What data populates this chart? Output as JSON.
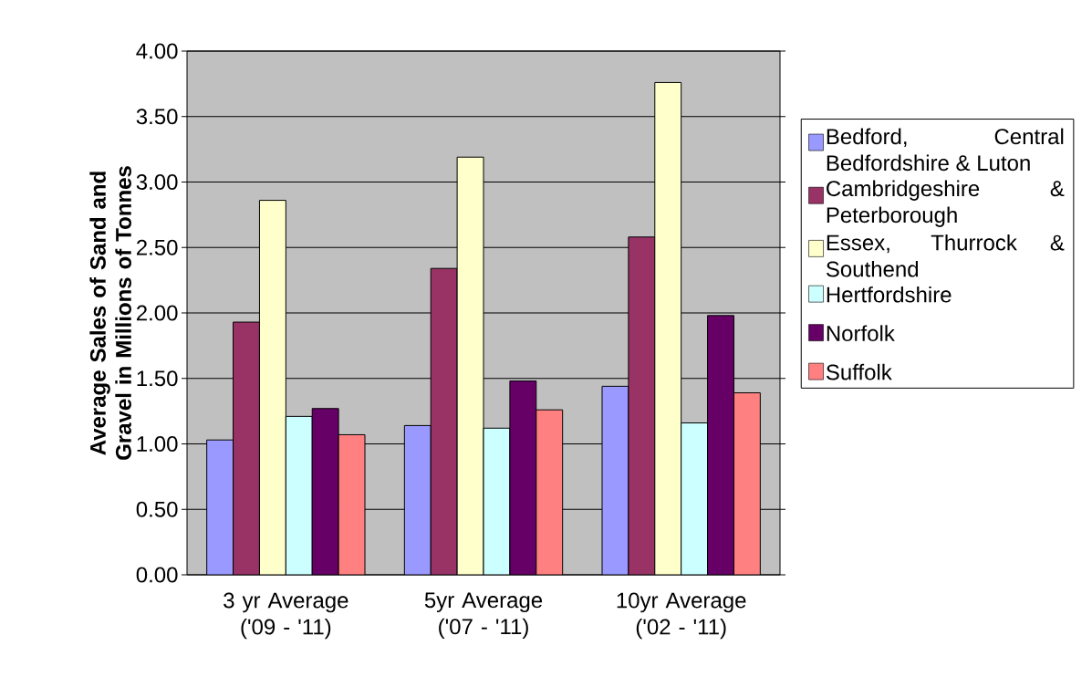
{
  "chart_data": {
    "type": "bar",
    "ylabel": "Average Sales of Sand and Gravel in Millions of Tonnes",
    "categories": [
      "3 yr Average ('09 - '11)",
      "5yr Average ('07 - '11)",
      "10yr Average ('02 - '11)"
    ],
    "series": [
      {
        "name": "Bedford, Central Bedfordshire & Luton",
        "color": "#9999ff",
        "values": [
          1.03,
          1.14,
          1.44
        ]
      },
      {
        "name": "Cambridgeshire & Peterborough",
        "color": "#993366",
        "values": [
          1.93,
          2.34,
          2.58
        ]
      },
      {
        "name": "Essex, Thurrock & Southend",
        "color": "#ffffcc",
        "values": [
          2.86,
          3.19,
          3.76
        ]
      },
      {
        "name": "Hertfordshire",
        "color": "#ccffff",
        "values": [
          1.21,
          1.12,
          1.16
        ]
      },
      {
        "name": "Norfolk",
        "color": "#660066",
        "values": [
          1.27,
          1.48,
          1.98
        ]
      },
      {
        "name": "Suffolk",
        "color": "#ff8080",
        "values": [
          1.07,
          1.26,
          1.39
        ]
      }
    ],
    "ylim": [
      0,
      4
    ],
    "yticks": [
      {
        "value": 0,
        "label": "0.00"
      },
      {
        "value": 0.5,
        "label": "0.50"
      },
      {
        "value": 1,
        "label": "1.00"
      },
      {
        "value": 1.5,
        "label": "1.50"
      },
      {
        "value": 2,
        "label": "2.00"
      },
      {
        "value": 2.5,
        "label": "2.50"
      },
      {
        "value": 3,
        "label": "3.00"
      },
      {
        "value": 3.5,
        "label": "3.50"
      },
      {
        "value": 4,
        "label": "4.00"
      }
    ],
    "grid": "y",
    "legend": "right"
  }
}
